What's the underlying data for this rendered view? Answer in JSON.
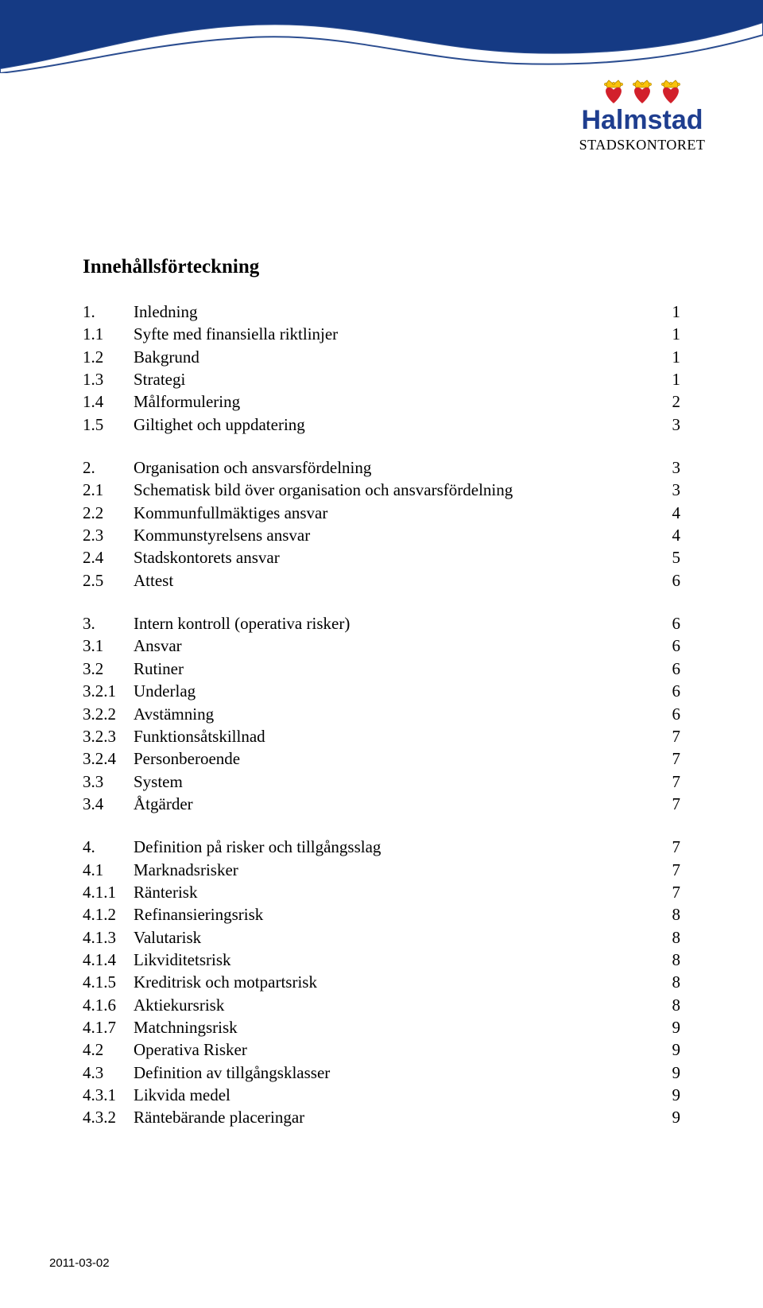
{
  "logo": {
    "word": "Halmstad",
    "sub": "STADSKONTORET",
    "word_color": "#1f3e8f",
    "word_fontsize": 34,
    "sub_fontsize": 18,
    "heart_fill": "#d2202b",
    "crown_fill": "#f9c20b",
    "crown_stroke": "#b08400"
  },
  "wave": {
    "fill": "#153a84",
    "height": 92
  },
  "title": "Innehållsförteckning",
  "title_fontsize": 25,
  "body_fontsize": 21,
  "toc": [
    {
      "items": [
        {
          "num": "1.",
          "label": "Inledning",
          "page": "1"
        },
        {
          "num": "1.1",
          "label": "Syfte med finansiella riktlinjer",
          "page": "1"
        },
        {
          "num": "1.2",
          "label": "Bakgrund",
          "page": "1"
        },
        {
          "num": "1.3",
          "label": "Strategi",
          "page": "1"
        },
        {
          "num": "1.4",
          "label": "Målformulering",
          "page": "2"
        },
        {
          "num": "1.5",
          "label": "Giltighet och uppdatering",
          "page": "3"
        }
      ]
    },
    {
      "items": [
        {
          "num": "2.",
          "label": "Organisation och ansvarsfördelning",
          "page": "3"
        },
        {
          "num": "2.1",
          "label": "Schematisk bild över organisation och ansvarsfördelning",
          "page": "3"
        },
        {
          "num": "2.2",
          "label": "Kommunfullmäktiges ansvar",
          "page": "4"
        },
        {
          "num": "2.3",
          "label": "Kommunstyrelsens ansvar",
          "page": "4"
        },
        {
          "num": "2.4",
          "label": "Stadskontorets ansvar",
          "page": "5"
        },
        {
          "num": "2.5",
          "label": "Attest",
          "page": "6"
        }
      ]
    },
    {
      "items": [
        {
          "num": "3.",
          "label": "Intern kontroll (operativa risker)",
          "page": "6"
        },
        {
          "num": "3.1",
          "label": "Ansvar",
          "page": "6"
        },
        {
          "num": "3.2",
          "label": "Rutiner",
          "page": "6"
        },
        {
          "num": "3.2.1",
          "label": "Underlag",
          "page": "6"
        },
        {
          "num": "3.2.2",
          "label": "Avstämning",
          "page": "6"
        },
        {
          "num": "3.2.3",
          "label": "Funktionsåtskillnad",
          "page": "7"
        },
        {
          "num": "3.2.4",
          "label": "Personberoende",
          "page": "7"
        },
        {
          "num": "3.3",
          "label": "System",
          "page": "7"
        },
        {
          "num": "3.4",
          "label": "Åtgärder",
          "page": "7"
        }
      ]
    },
    {
      "items": [
        {
          "num": "4.",
          "label": "Definition på risker och tillgångsslag",
          "page": "7"
        },
        {
          "num": "4.1",
          "label": "Marknadsrisker",
          "page": "7"
        },
        {
          "num": "4.1.1",
          "label": "Ränterisk",
          "page": "7"
        },
        {
          "num": "4.1.2",
          "label": "Refinansieringsrisk",
          "page": "8"
        },
        {
          "num": "4.1.3",
          "label": "Valutarisk",
          "page": "8"
        },
        {
          "num": "4.1.4",
          "label": "Likviditetsrisk",
          "page": "8"
        },
        {
          "num": "4.1.5",
          "label": "Kreditrisk och motpartsrisk",
          "page": "8"
        },
        {
          "num": "4.1.6",
          "label": "Aktiekursrisk",
          "page": "8"
        },
        {
          "num": "4.1.7",
          "label": "Matchningsrisk",
          "page": "9"
        },
        {
          "num": "4.2",
          "label": "Operativa Risker",
          "page": "9"
        },
        {
          "num": "4.3",
          "label": "Definition av tillgångsklasser",
          "page": "9"
        },
        {
          "num": "4.3.1",
          "label": "Likvida medel",
          "page": "9"
        },
        {
          "num": "4.3.2",
          "label": "Räntebärande placeringar",
          "page": "9"
        }
      ]
    }
  ],
  "footer_date": "2011-03-02",
  "colors": {
    "text": "#000000",
    "background": "#ffffff"
  }
}
